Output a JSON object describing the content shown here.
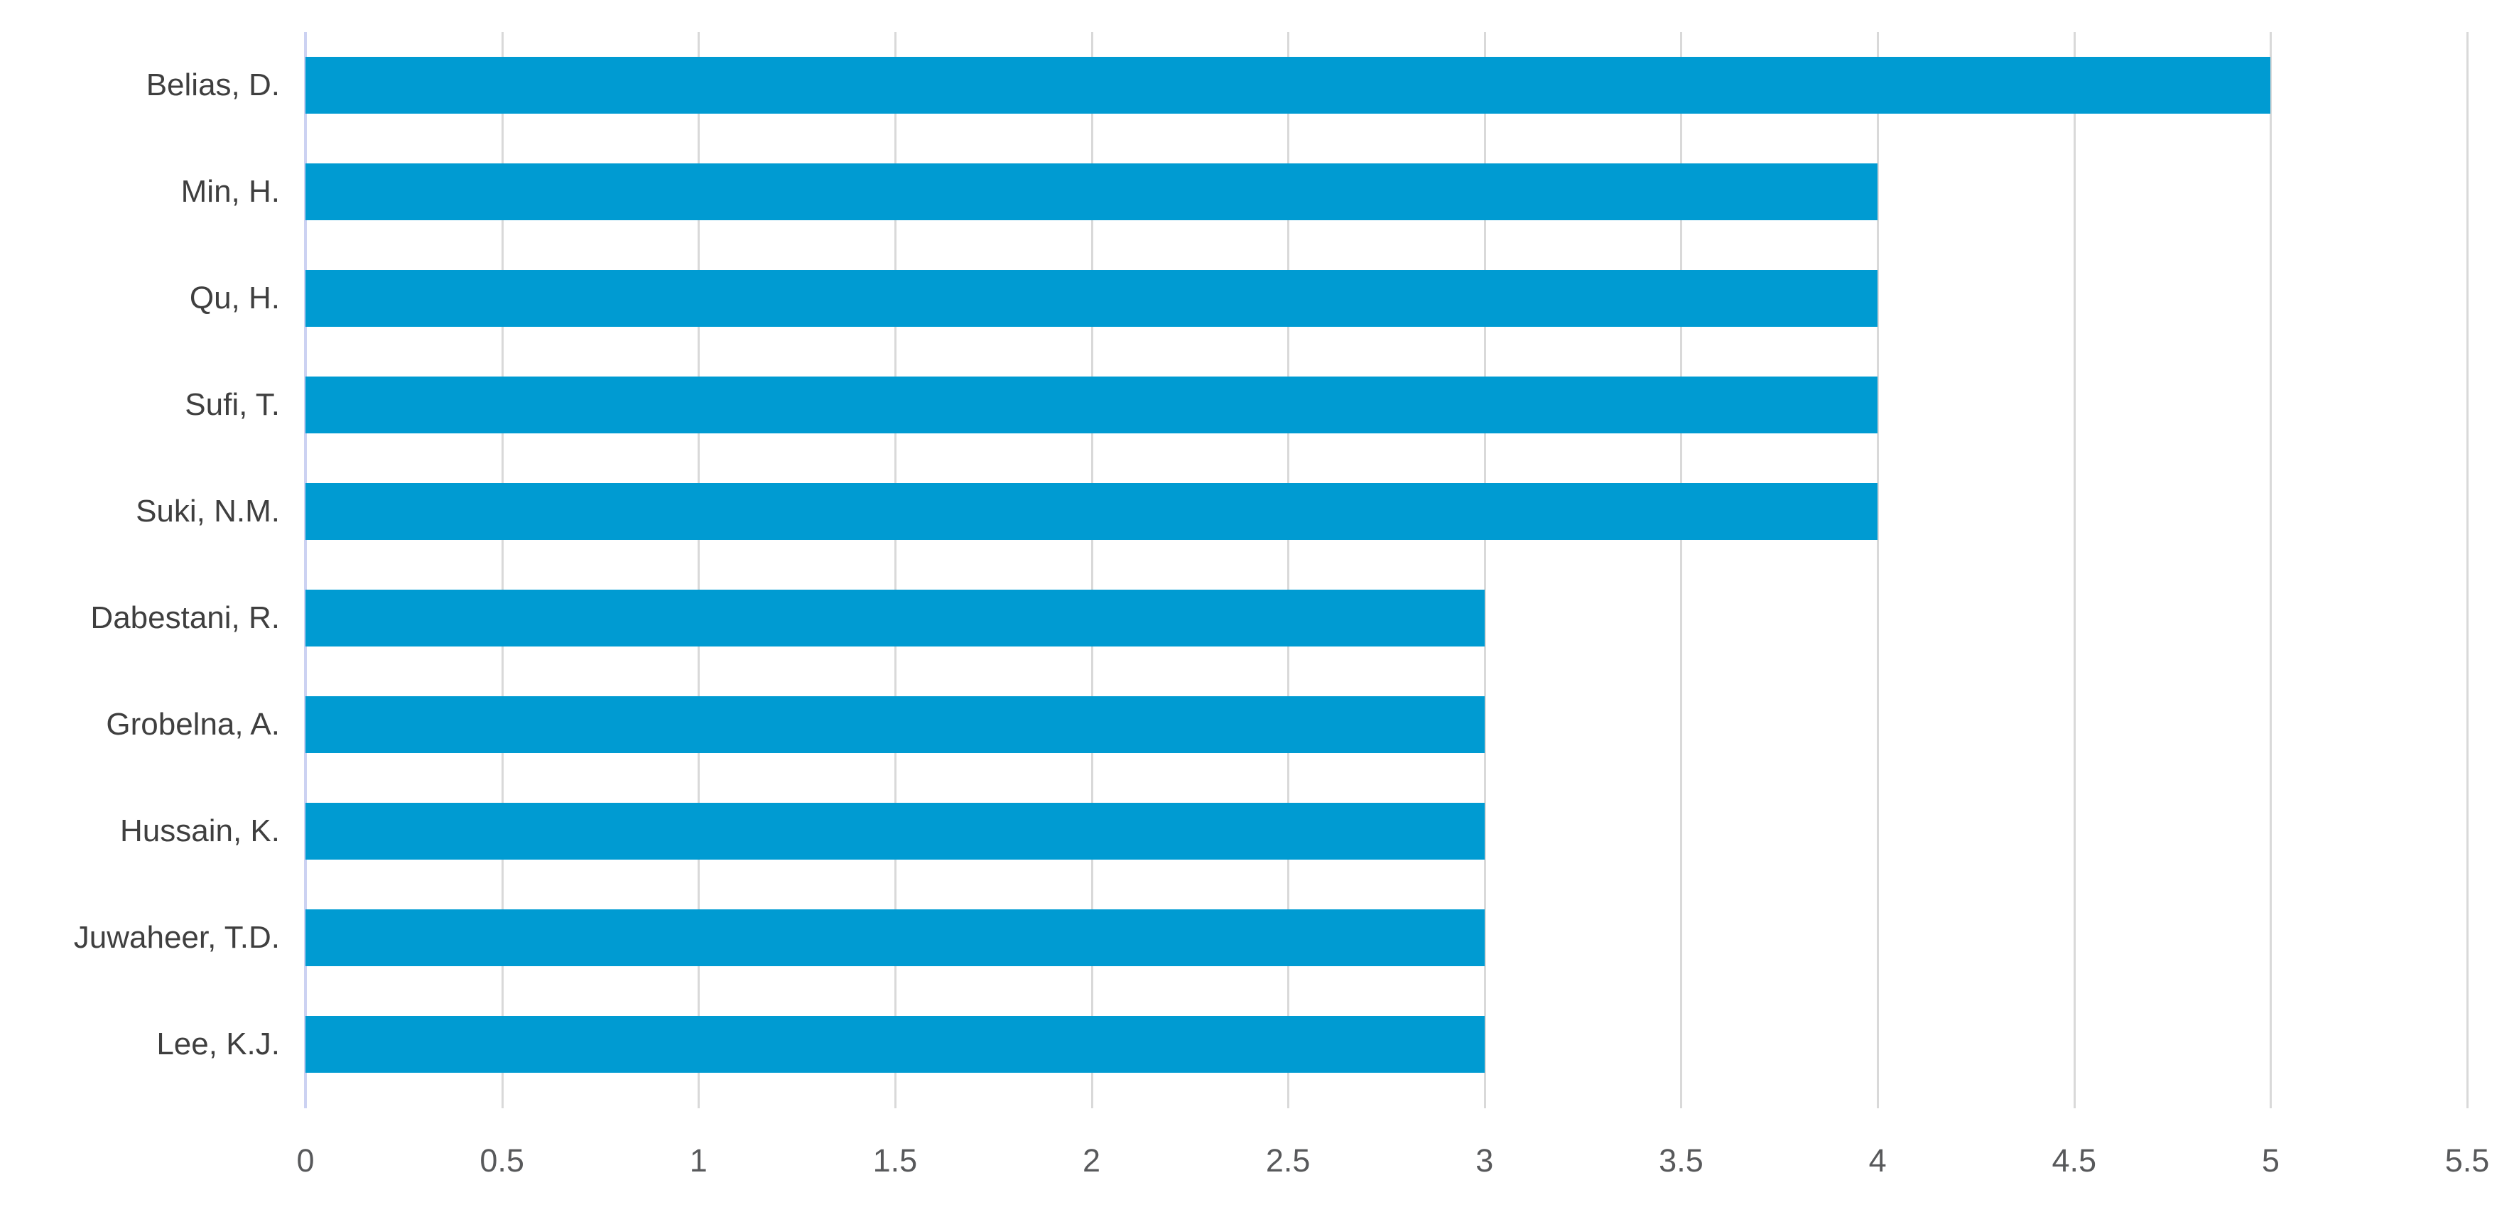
{
  "chart_data": {
    "type": "bar",
    "orientation": "horizontal",
    "categories": [
      "Belias, D.",
      "Min, H.",
      "Qu, H.",
      "Sufi, T.",
      "Suki, N.M.",
      "Dabestani, R.",
      "Grobelna, A.",
      "Hussain, K.",
      "Juwaheer, T.D.",
      "Lee, K.J."
    ],
    "values": [
      5,
      4,
      4,
      4,
      4,
      3,
      3,
      3,
      3,
      3
    ],
    "title": "",
    "xlabel": "",
    "ylabel": "",
    "xlim": [
      0,
      5.5
    ],
    "x_ticks": [
      "0",
      "0.5",
      "1",
      "1.5",
      "2",
      "2.5",
      "3",
      "3.5",
      "4",
      "4.5",
      "5",
      "5.5"
    ],
    "grid": true,
    "legend": false,
    "colors": {
      "bar": "#009bd2",
      "gridline": "#d9d9d9",
      "zero_axis_line": "#ccd2f2",
      "tick_label": "#58595b",
      "category_label": "#3f3f3f",
      "background": "#ffffff"
    }
  }
}
